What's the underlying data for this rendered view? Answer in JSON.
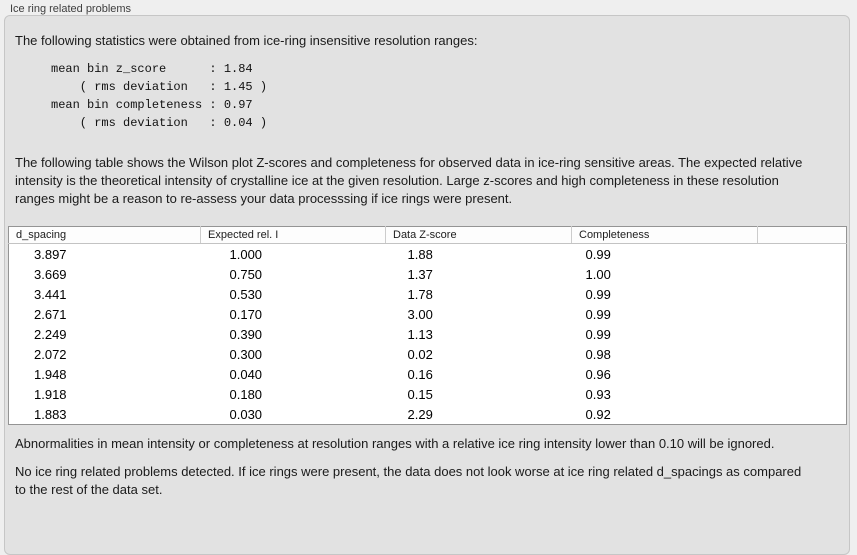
{
  "section": {
    "label": "Ice ring related problems"
  },
  "panel": {
    "intro": "The following statistics were obtained from ice-ring insensitive resolution ranges:",
    "stats_block": "mean bin z_score      : 1.84\n    ( rms deviation   : 1.45 )\nmean bin completeness : 0.97\n    ( rms deviation   : 0.04 )",
    "stats": {
      "mean_bin_z_score": "1.84",
      "z_score_rms_deviation": "1.45",
      "mean_bin_completeness": "0.97",
      "completeness_rms_deviation": "0.04"
    },
    "table_description": "The following table shows the Wilson plot Z-scores and completeness for observed data in ice-ring sensitive areas. The expected relative intensity is the theoretical intensity of crystalline ice at the given resolution. Large z-scores and high completeness in these resolution ranges might be a reason to re-assess your data processsing if ice rings were present.",
    "note_ignore": "Abnormalities in mean intensity or completeness at resolution ranges with a relative ice ring intensity lower than 0.10 will be ignored.",
    "conclusion": "No ice ring related problems detected. If ice rings were present, the data does not look worse at ice ring related d_spacings as compared to the rest of the data set."
  },
  "table": {
    "columns": [
      "d_spacing",
      "Expected rel. I",
      "Data Z-score",
      "Completeness",
      ""
    ],
    "rows": [
      [
        "3.897",
        "1.000",
        "1.88",
        "0.99"
      ],
      [
        "3.669",
        "0.750",
        "1.37",
        "1.00"
      ],
      [
        "3.441",
        "0.530",
        "1.78",
        "0.99"
      ],
      [
        "2.671",
        "0.170",
        "3.00",
        "0.99"
      ],
      [
        "2.249",
        "0.390",
        "1.13",
        "0.99"
      ],
      [
        "2.072",
        "0.300",
        "0.02",
        "0.98"
      ],
      [
        "1.948",
        "0.040",
        "0.16",
        "0.96"
      ],
      [
        "1.918",
        "0.180",
        "0.15",
        "0.93"
      ],
      [
        "1.883",
        "0.030",
        "2.29",
        "0.92"
      ]
    ]
  },
  "colors": {
    "window_background": "#efefef",
    "panel_background": "#e2e2e2",
    "panel_border": "#c6c6c6",
    "table_background": "#ffffff",
    "table_border": "#949494",
    "text": "#1a1a1a"
  }
}
